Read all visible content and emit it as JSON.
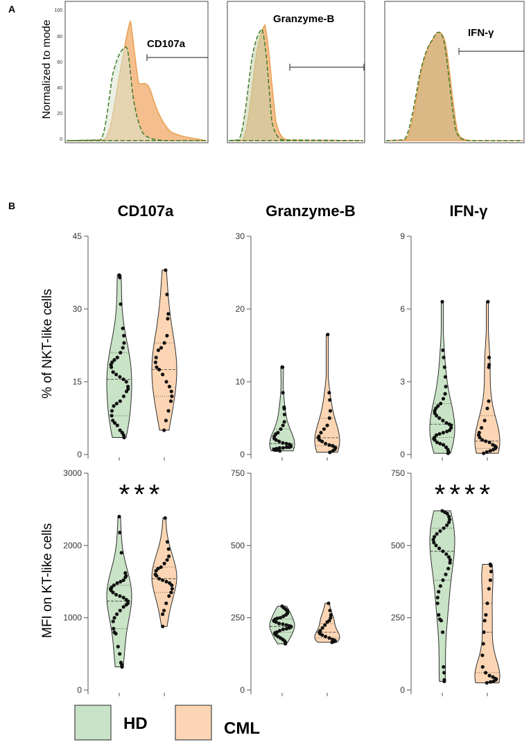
{
  "panels": {
    "a": "A",
    "b": "B"
  },
  "histograms": {
    "ylabel": "Normalized to mode",
    "yticks": [
      "0",
      "20",
      "40",
      "60",
      "80",
      "100"
    ],
    "items": [
      {
        "label": "CD107a"
      },
      {
        "label": "Granzyme-B"
      },
      {
        "label": "IFN-γ"
      }
    ]
  },
  "columns": [
    "CD107a",
    "Granzyme-B",
    "IFN-γ"
  ],
  "rows": [
    {
      "ylabel": "% of NKT-like cells"
    },
    {
      "ylabel": "MFI on KT-like cells"
    }
  ],
  "legend": [
    {
      "label": "HD",
      "color": "#c9e3c6"
    },
    {
      "label": "CML",
      "color": "#fcd6b4"
    }
  ],
  "colors": {
    "hd_fill": "#c9e3c6",
    "hd_stroke": "#2e2e2e",
    "cml_fill": "#fcd6b4",
    "hist_cml": "#f2b37a",
    "hist_cml_line": "#e8a050",
    "hist_hd_line": "#3d7a2a"
  },
  "chart_data": [
    {
      "type": "violin",
      "title": "CD107a",
      "ylabel": "% of NKT-like cells",
      "ylim": [
        0,
        45
      ],
      "yticks": [
        0,
        15,
        30,
        45
      ],
      "categories": [
        "HD",
        "CML"
      ],
      "series": [
        {
          "name": "HD",
          "min": 3.5,
          "max": 37,
          "median": 15.5,
          "q1": 8,
          "q3": 21,
          "points": [
            37,
            36.5,
            31,
            26,
            24.5,
            23,
            22,
            21,
            20,
            19.5,
            19,
            18.5,
            18,
            17,
            16.5,
            16,
            15.5,
            15,
            14,
            13.5,
            13,
            12,
            11,
            10.5,
            10,
            9,
            8,
            7,
            6.5,
            6,
            5,
            4.5,
            4,
            3.5
          ]
        },
        {
          "name": "CML",
          "min": 5,
          "max": 38,
          "median": 17.5,
          "q1": 12,
          "q3": 23,
          "points": [
            38,
            33,
            29,
            28,
            24.5,
            23,
            22,
            21.5,
            20,
            19,
            18,
            17.5,
            16.5,
            15,
            14,
            13,
            12,
            11,
            9,
            7,
            5
          ]
        }
      ]
    },
    {
      "type": "violin",
      "title": "Granzyme-B",
      "ylabel": "% of NKT-like cells",
      "ylim": [
        0,
        30
      ],
      "yticks": [
        0,
        10,
        20,
        30
      ],
      "categories": [
        "HD",
        "CML"
      ],
      "series": [
        {
          "name": "HD",
          "min": 0.5,
          "max": 12,
          "median": 1.5,
          "q1": 0.9,
          "q3": 3.5,
          "points": [
            12,
            12,
            8.5,
            6.5,
            6.3,
            5.5,
            4.5,
            4,
            3.5,
            3,
            2.8,
            2.5,
            2.2,
            2,
            1.8,
            1.6,
            1.5,
            1.4,
            1.2,
            1.1,
            1,
            1,
            0.9,
            0.9,
            0.8,
            0.7,
            0.7,
            0.6,
            0.6,
            0.5
          ]
        },
        {
          "name": "CML",
          "min": 0.3,
          "max": 16.5,
          "median": 2.3,
          "q1": 1.2,
          "q3": 5,
          "points": [
            16.5,
            8.5,
            7.5,
            6,
            5,
            4,
            3.5,
            3,
            2.5,
            2.3,
            2,
            1.8,
            1.5,
            1.3,
            1.2,
            1,
            0.9,
            0.7,
            0.5,
            0.3
          ]
        }
      ]
    },
    {
      "type": "violin",
      "title": "IFN-γ",
      "ylabel": "% of NKT-like cells",
      "ylim": [
        0,
        9
      ],
      "yticks": [
        0,
        3,
        6,
        9
      ],
      "categories": [
        "HD",
        "CML"
      ],
      "series": [
        {
          "name": "HD",
          "min": 0.05,
          "max": 6.3,
          "median": 1.25,
          "q1": 0.7,
          "q3": 2.1,
          "points": [
            6.3,
            4.3,
            4,
            3.6,
            3.2,
            2.8,
            2.5,
            2.3,
            2.1,
            2,
            1.9,
            1.8,
            1.7,
            1.6,
            1.5,
            1.4,
            1.3,
            1.25,
            1.2,
            1.1,
            1,
            0.95,
            0.9,
            0.85,
            0.8,
            0.7,
            0.65,
            0.6,
            0.5,
            0.45,
            0.4,
            0.3,
            0.2,
            0.1,
            0.05
          ]
        },
        {
          "name": "CML",
          "min": 0.05,
          "max": 6.3,
          "median": 0.55,
          "q1": 0.25,
          "q3": 1.6,
          "points": [
            6.3,
            4,
            3.7,
            3.6,
            2.2,
            1.9,
            1.4,
            1.1,
            0.9,
            0.8,
            0.7,
            0.6,
            0.55,
            0.5,
            0.4,
            0.35,
            0.3,
            0.25,
            0.2,
            0.15,
            0.1,
            0.05
          ]
        }
      ]
    },
    {
      "type": "violin",
      "title": "CD107a",
      "ylabel": "MFI on KT-like cells",
      "ylim": [
        0,
        3000
      ],
      "yticks": [
        0,
        1000,
        2000,
        3000
      ],
      "categories": [
        "HD",
        "CML"
      ],
      "significance": "***",
      "series": [
        {
          "name": "HD",
          "min": 320,
          "max": 2400,
          "median": 1230,
          "q1": 850,
          "q3": 1450,
          "points": [
            2400,
            2180,
            1900,
            1620,
            1580,
            1560,
            1520,
            1500,
            1480,
            1450,
            1420,
            1400,
            1380,
            1350,
            1320,
            1300,
            1280,
            1250,
            1230,
            1200,
            1180,
            1150,
            1100,
            1050,
            1000,
            950,
            850,
            800,
            780,
            600,
            500,
            380,
            350,
            330,
            320
          ]
        },
        {
          "name": "CML",
          "min": 880,
          "max": 2380,
          "median": 1540,
          "q1": 1350,
          "q3": 1700,
          "points": [
            2380,
            2050,
            1950,
            1850,
            1800,
            1750,
            1700,
            1680,
            1650,
            1600,
            1580,
            1540,
            1520,
            1500,
            1480,
            1450,
            1400,
            1350,
            1300,
            1200,
            1100,
            1050,
            880
          ]
        }
      ]
    },
    {
      "type": "violin",
      "title": "Granzyme-B",
      "ylabel": "MFI on KT-like cells",
      "ylim": [
        0,
        750
      ],
      "yticks": [
        0,
        250,
        500,
        750
      ],
      "categories": [
        "HD",
        "CML"
      ],
      "series": [
        {
          "name": "HD",
          "min": 160,
          "max": 290,
          "median": 220,
          "q1": 200,
          "q3": 245,
          "points": [
            290,
            285,
            280,
            275,
            270,
            265,
            260,
            255,
            250,
            248,
            245,
            240,
            238,
            235,
            230,
            228,
            225,
            222,
            220,
            218,
            215,
            212,
            210,
            205,
            200,
            198,
            195,
            190,
            185,
            180,
            175,
            170,
            165,
            160
          ]
        },
        {
          "name": "CML",
          "min": 165,
          "max": 300,
          "median": 200,
          "q1": 180,
          "q3": 230,
          "points": [
            300,
            275,
            260,
            250,
            240,
            235,
            225,
            215,
            205,
            200,
            195,
            190,
            185,
            180,
            175,
            172,
            170,
            168,
            165
          ]
        }
      ]
    },
    {
      "type": "violin",
      "title": "IFN-γ",
      "ylabel": "MFI on KT-like cells",
      "ylim": [
        0,
        750
      ],
      "yticks": [
        0,
        250,
        500,
        750
      ],
      "categories": [
        "HD",
        "CML"
      ],
      "significance": "****",
      "series": [
        {
          "name": "HD",
          "min": 30,
          "max": 620,
          "median": 480,
          "q1": 380,
          "q3": 560,
          "points": [
            620,
            615,
            610,
            600,
            590,
            580,
            570,
            560,
            550,
            540,
            530,
            520,
            510,
            500,
            490,
            480,
            470,
            460,
            450,
            440,
            420,
            400,
            380,
            360,
            340,
            320,
            300,
            260,
            245,
            240,
            200,
            80,
            60,
            35,
            30
          ]
        },
        {
          "name": "CML",
          "min": 25,
          "max": 435,
          "median": 200,
          "q1": 60,
          "q3": 300,
          "points": [
            435,
            430,
            410,
            380,
            350,
            300,
            260,
            240,
            200,
            160,
            120,
            80,
            60,
            50,
            45,
            40,
            38,
            35,
            30,
            28,
            25
          ]
        }
      ]
    }
  ]
}
